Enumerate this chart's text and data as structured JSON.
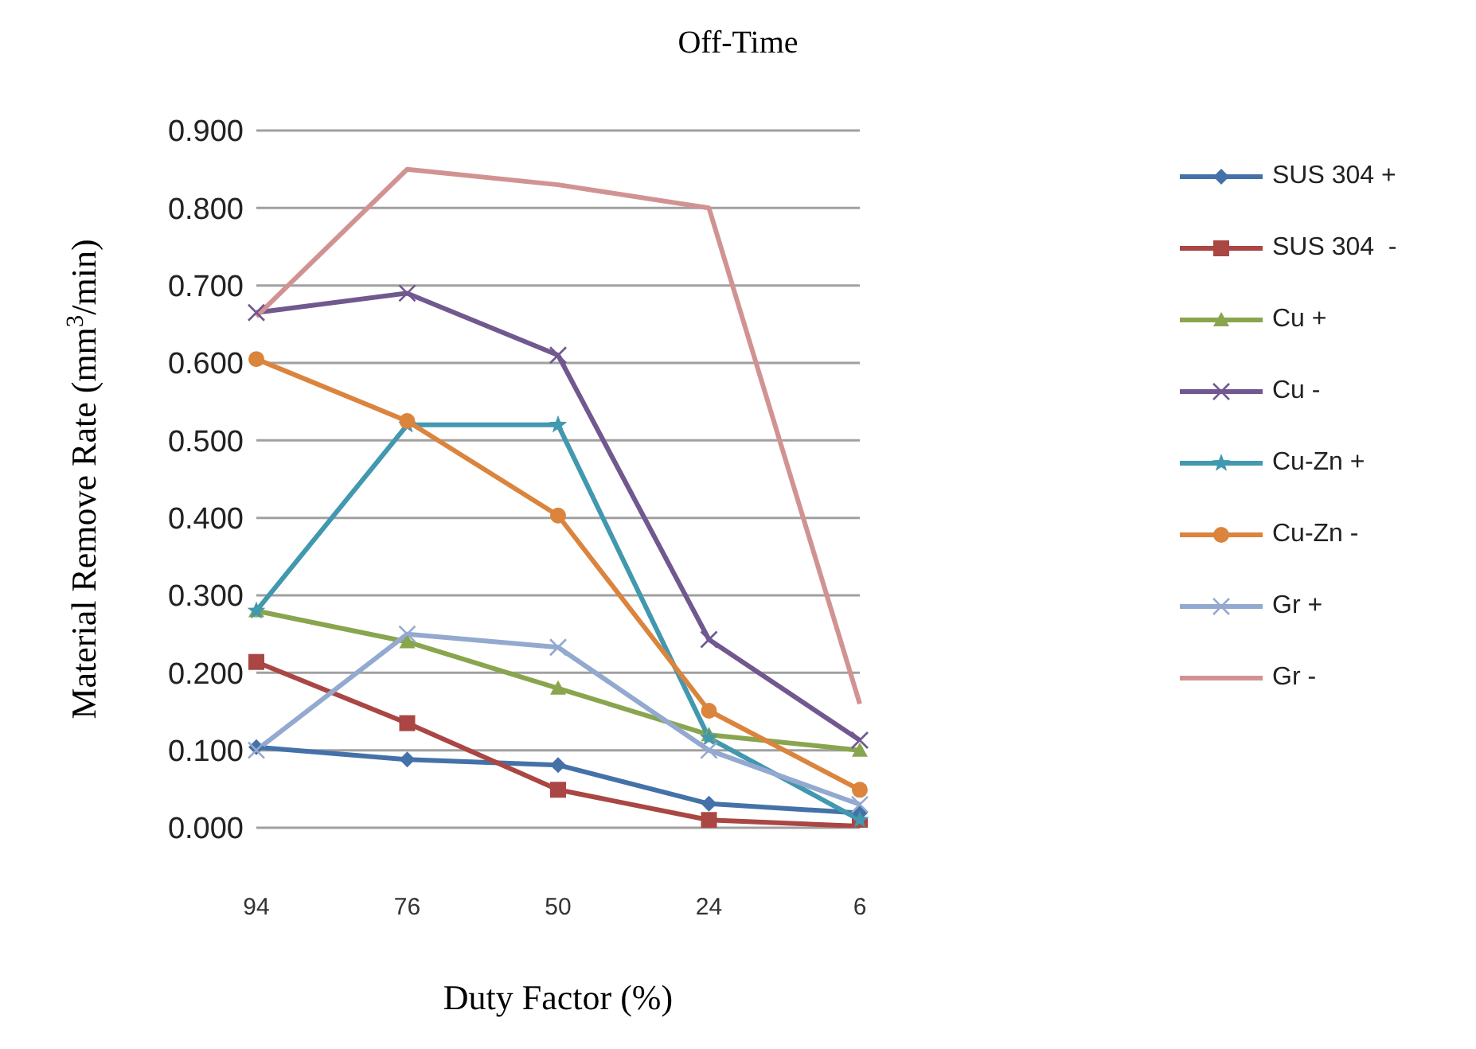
{
  "chart_data": {
    "type": "line",
    "title": "Off-Time",
    "xlabel": "Duty Factor (%)",
    "ylabel": "Material Remove Rate (mm$^{3}$/min)",
    "categories": [
      "94",
      "76",
      "50",
      "24",
      "6"
    ],
    "series": [
      {
        "name": "SUS 304 +",
        "color": "#4472a8",
        "marker": "diamond",
        "values": [
          0.104,
          0.088,
          0.081,
          0.031,
          0.019
        ]
      },
      {
        "name": "SUS 304  -",
        "color": "#aa4643",
        "marker": "square",
        "values": [
          0.214,
          0.135,
          0.049,
          0.01,
          0.002
        ]
      },
      {
        "name": "Cu +",
        "color": "#89a54e",
        "marker": "triangle",
        "values": [
          0.28,
          0.24,
          0.18,
          0.12,
          0.1
        ]
      },
      {
        "name": "Cu -",
        "color": "#71588f",
        "marker": "cross",
        "values": [
          0.665,
          0.69,
          0.61,
          0.243,
          0.113
        ]
      },
      {
        "name": "Cu-Zn +",
        "color": "#4198af",
        "marker": "star",
        "values": [
          0.28,
          0.52,
          0.52,
          0.116,
          0.01
        ]
      },
      {
        "name": "Cu-Zn -",
        "color": "#db843d",
        "marker": "circle",
        "values": [
          0.605,
          0.525,
          0.403,
          0.151,
          0.049
        ]
      },
      {
        "name": "Gr +",
        "color": "#93a9cf",
        "marker": "cross",
        "values": [
          0.1,
          0.25,
          0.233,
          0.1,
          0.03
        ]
      },
      {
        "name": "Gr -",
        "color": "#d19392",
        "marker": "none",
        "values": [
          0.66,
          0.85,
          0.83,
          0.8,
          0.16
        ]
      }
    ],
    "ylim": [
      0,
      0.9
    ],
    "yticks": [
      {
        "value": 0,
        "label": "0.000"
      },
      {
        "value": 0.1,
        "label": "0.100"
      },
      {
        "value": 0.2,
        "label": "0.200"
      },
      {
        "value": 0.3,
        "label": "0.300"
      },
      {
        "value": 0.4,
        "label": "0.400"
      },
      {
        "value": 0.5,
        "label": "0.500"
      },
      {
        "value": 0.6,
        "label": "0.600"
      },
      {
        "value": 0.7,
        "label": "0.700"
      },
      {
        "value": 0.8,
        "label": "0.800"
      },
      {
        "value": 0.9,
        "label": "0.900"
      }
    ],
    "grid": "y",
    "legend": "right",
    "line_style": "solid"
  }
}
